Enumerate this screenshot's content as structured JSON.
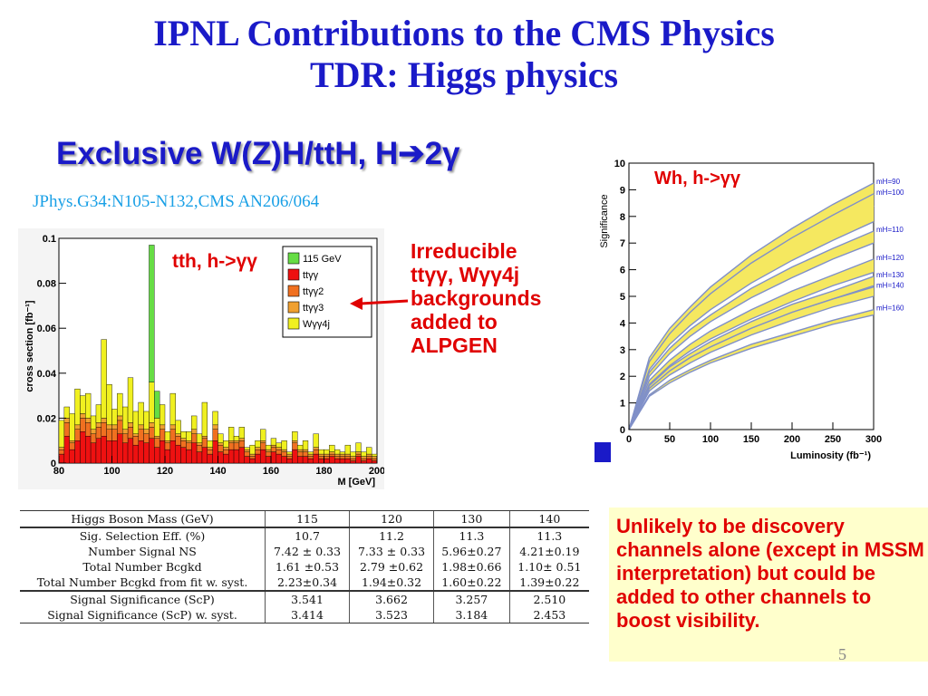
{
  "slide": {
    "title_lines": [
      "IPNL Contributions to the CMS Physics",
      "TDR: Higgs physics"
    ],
    "subtitle_main": "Exclusive W(Z)H/ttH, H",
    "subtitle_arrow": "➔",
    "subtitle_tail": "2γ",
    "reference": "JPhys.G34:N105-N132,CMS AN206/064",
    "tth_label": "tth, h->γγ",
    "wh_label": "Wh, h->γγ",
    "irreducible_lines": [
      "Irreducible",
      "ttγγ, Wγγ4j",
      "backgrounds",
      "added to",
      "ALPGEN"
    ],
    "note": "Unlikely to be discovery channels alone (except in MSSM interpretation) but could be added to other channels to boost visibility.",
    "page_number": "5",
    "colors": {
      "title": "#1a1ac8",
      "highlight": "#e00000",
      "reference": "#1aa0e6",
      "note_bg": "#ffffcc"
    }
  },
  "table": {
    "header": [
      "Higgs Boson Mass (GeV)",
      "115",
      "120",
      "130",
      "140"
    ],
    "groups": [
      [
        [
          "Sig. Selection Eff. (%)",
          "10.7",
          "11.2",
          "11.3",
          "11.3"
        ],
        [
          "Number Signal NS",
          "7.42 ± 0.33",
          "7.33 ± 0.33",
          "5.96±0.27",
          "4.21±0.19"
        ],
        [
          "Total Number Bcgkd",
          "1.61 ±0.53",
          "2.79 ±0.62",
          "1.98±0.66",
          "1.10± 0.51"
        ],
        [
          "Total Number Bcgkd from fit w. syst.",
          "2.23±0.34",
          "1.94±0.32",
          "1.60±0.22",
          "1.39±0.22"
        ]
      ],
      [
        [
          "Signal Significance (ScP)",
          "3.541",
          "3.662",
          "3.257",
          "2.510"
        ],
        [
          "Signal Significance (ScP) w. syst.",
          "3.414",
          "3.523",
          "3.184",
          "2.453"
        ]
      ]
    ]
  },
  "chart_data": [
    {
      "type": "bar",
      "title": "",
      "xlabel": "M [GeV]",
      "ylabel": "cross section [fb⁻¹]",
      "xlim": [
        80,
        200
      ],
      "ylim": [
        0,
        0.1
      ],
      "x_ticks": [
        "80",
        "100",
        "120",
        "140",
        "160",
        "180",
        "200"
      ],
      "y_ticks": [
        "0",
        "0.02",
        "0.04",
        "0.06",
        "0.08",
        "0.1"
      ],
      "legend_position": "top-right",
      "bin_width": 2,
      "bin_starts": [
        80,
        82,
        84,
        86,
        88,
        90,
        92,
        94,
        96,
        98,
        100,
        102,
        104,
        106,
        108,
        110,
        112,
        114,
        116,
        118,
        120,
        122,
        124,
        126,
        128,
        130,
        132,
        134,
        136,
        138,
        140,
        142,
        144,
        146,
        148,
        150,
        152,
        154,
        156,
        158,
        160,
        162,
        164,
        166,
        168,
        170,
        172,
        174,
        176,
        178,
        180,
        182,
        184,
        186,
        188,
        190,
        192,
        194,
        196,
        198
      ],
      "series": [
        {
          "name": "ttγγ",
          "color": "#ee1111",
          "values": [
            0.004,
            0.012,
            0.006,
            0.01,
            0.014,
            0.012,
            0.009,
            0.011,
            0.012,
            0.01,
            0.01,
            0.013,
            0.009,
            0.011,
            0.008,
            0.01,
            0.009,
            0.011,
            0.007,
            0.01,
            0.006,
            0.01,
            0.008,
            0.007,
            0.006,
            0.009,
            0.005,
            0.007,
            0.004,
            0.01,
            0.005,
            0.004,
            0.006,
            0.006,
            0.007,
            0.003,
            0.002,
            0.004,
            0.006,
            0.003,
            0.005,
            0.004,
            0.003,
            0.002,
            0.006,
            0.003,
            0.003,
            0.002,
            0.004,
            0.002,
            0.002,
            0.003,
            0.002,
            0.002,
            0.002,
            0.001,
            0.003,
            0.001,
            0.002,
            0.001
          ]
        },
        {
          "name": "ttγγ2",
          "color": "#f07020",
          "values": [
            0.002,
            0.006,
            0.003,
            0.005,
            0.006,
            0.006,
            0.004,
            0.005,
            0.006,
            0.005,
            0.005,
            0.006,
            0.004,
            0.005,
            0.004,
            0.005,
            0.004,
            0.005,
            0.004,
            0.005,
            0.003,
            0.005,
            0.004,
            0.003,
            0.003,
            0.004,
            0.003,
            0.004,
            0.002,
            0.005,
            0.003,
            0.002,
            0.003,
            0.003,
            0.003,
            0.002,
            0.001,
            0.002,
            0.003,
            0.002,
            0.002,
            0.002,
            0.002,
            0.001,
            0.003,
            0.002,
            0.002,
            0.001,
            0.002,
            0.001,
            0.001,
            0.001,
            0.001,
            0.001,
            0.001,
            0.001,
            0.001,
            0.001,
            0.001,
            0.001
          ]
        },
        {
          "name": "ttγγ3",
          "color": "#f0a030",
          "values": [
            0.001,
            0.002,
            0.001,
            0.002,
            0.002,
            0.002,
            0.002,
            0.002,
            0.002,
            0.002,
            0.002,
            0.002,
            0.002,
            0.002,
            0.001,
            0.002,
            0.002,
            0.002,
            0.001,
            0.002,
            0.001,
            0.002,
            0.001,
            0.001,
            0.001,
            0.002,
            0.001,
            0.001,
            0.001,
            0.002,
            0.001,
            0.001,
            0.001,
            0.001,
            0.001,
            0.001,
            0.001,
            0.001,
            0.001,
            0.001,
            0.001,
            0.001,
            0.001,
            0.001,
            0.001,
            0.001,
            0.001,
            0.001,
            0.001,
            0.001,
            0.001,
            0.001,
            0.001,
            0.001,
            0.001,
            0.001,
            0.001,
            0.001,
            0.001,
            0.001
          ]
        },
        {
          "name": "Wγγ4j",
          "color": "#f0f020",
          "values": [
            0.012,
            0.005,
            0.012,
            0.016,
            0.008,
            0.011,
            0.006,
            0.008,
            0.035,
            0.018,
            0.007,
            0.01,
            0.01,
            0.02,
            0.01,
            0.01,
            0.008,
            0.018,
            0.008,
            0.009,
            0.004,
            0.014,
            0.006,
            0.003,
            0.004,
            0.006,
            0.004,
            0.015,
            0.003,
            0.006,
            0.004,
            0.003,
            0.006,
            0.002,
            0.005,
            0.001,
            0.004,
            0.003,
            0.005,
            0.002,
            0.003,
            0.002,
            0.004,
            0.001,
            0.004,
            0.002,
            0.004,
            0.001,
            0.006,
            0.002,
            0.002,
            0.003,
            0.002,
            0.001,
            0.004,
            0.002,
            0.004,
            0.002,
            0.003,
            0.001
          ]
        },
        {
          "name": "115 GeV",
          "color": "#66dd44",
          "values": [
            0,
            0,
            0,
            0,
            0,
            0,
            0,
            0,
            0,
            0,
            0,
            0,
            0,
            0,
            0,
            0,
            0,
            0.061,
            0.012,
            0,
            0,
            0,
            0,
            0,
            0,
            0,
            0,
            0,
            0,
            0,
            0,
            0,
            0,
            0,
            0,
            0,
            0,
            0,
            0,
            0,
            0,
            0,
            0,
            0,
            0,
            0,
            0,
            0,
            0,
            0,
            0,
            0,
            0,
            0,
            0,
            0,
            0,
            0,
            0,
            0
          ]
        }
      ]
    },
    {
      "type": "line",
      "title": "",
      "xlabel": "Luminosity (fb⁻¹)",
      "ylabel": "Significance",
      "xlim": [
        0,
        300
      ],
      "ylim": [
        0,
        10
      ],
      "x_ticks": [
        "0",
        "50",
        "100",
        "150",
        "200",
        "250",
        "300"
      ],
      "y_ticks": [
        "0",
        "1",
        "2",
        "3",
        "4",
        "5",
        "6",
        "7",
        "8",
        "9",
        "10"
      ],
      "x": [
        0,
        25,
        50,
        75,
        100,
        150,
        200,
        250,
        300
      ],
      "band_color": "#f5e860",
      "line_color": "#8090c8",
      "series": [
        {
          "name": "mH=90",
          "y_low": [
            0,
            2.4,
            3.4,
            4.2,
            4.85,
            5.95,
            6.85,
            7.65,
            8.4
          ],
          "y_high": [
            0,
            2.7,
            3.8,
            4.6,
            5.35,
            6.55,
            7.55,
            8.45,
            9.25
          ]
        },
        {
          "name": "mH=100",
          "y_low": [
            0,
            2.25,
            3.2,
            3.9,
            4.5,
            5.5,
            6.35,
            7.1,
            7.8
          ],
          "y_high": [
            0,
            2.55,
            3.6,
            4.4,
            5.1,
            6.25,
            7.2,
            8.05,
            8.85
          ]
        },
        {
          "name": "mH=110",
          "y_low": [
            0,
            2.0,
            2.85,
            3.5,
            4.05,
            4.95,
            5.7,
            6.4,
            7.0
          ],
          "y_high": [
            0,
            2.15,
            3.05,
            3.75,
            4.3,
            5.3,
            6.1,
            6.8,
            7.45
          ]
        },
        {
          "name": "mH=120",
          "y_low": [
            0,
            1.7,
            2.4,
            2.95,
            3.4,
            4.15,
            4.8,
            5.4,
            5.9
          ],
          "y_high": [
            0,
            1.85,
            2.6,
            3.2,
            3.7,
            4.5,
            5.2,
            5.8,
            6.4
          ]
        },
        {
          "name": "mH=130",
          "y_low": [
            0,
            1.55,
            2.2,
            2.7,
            3.1,
            3.8,
            4.4,
            4.9,
            5.4
          ],
          "y_high": [
            0,
            1.65,
            2.35,
            2.85,
            3.3,
            4.05,
            4.7,
            5.2,
            5.75
          ]
        },
        {
          "name": "mH=140",
          "y_low": [
            0,
            1.45,
            2.05,
            2.5,
            2.9,
            3.55,
            4.1,
            4.6,
            5.0
          ],
          "y_high": [
            0,
            1.55,
            2.2,
            2.7,
            3.1,
            3.8,
            4.4,
            4.9,
            5.35
          ]
        },
        {
          "name": "mH=160",
          "y_low": [
            0,
            1.25,
            1.75,
            2.15,
            2.5,
            3.05,
            3.5,
            3.95,
            4.3
          ],
          "y_high": [
            0,
            1.3,
            1.85,
            2.25,
            2.6,
            3.2,
            3.65,
            4.1,
            4.5
          ]
        }
      ]
    }
  ]
}
